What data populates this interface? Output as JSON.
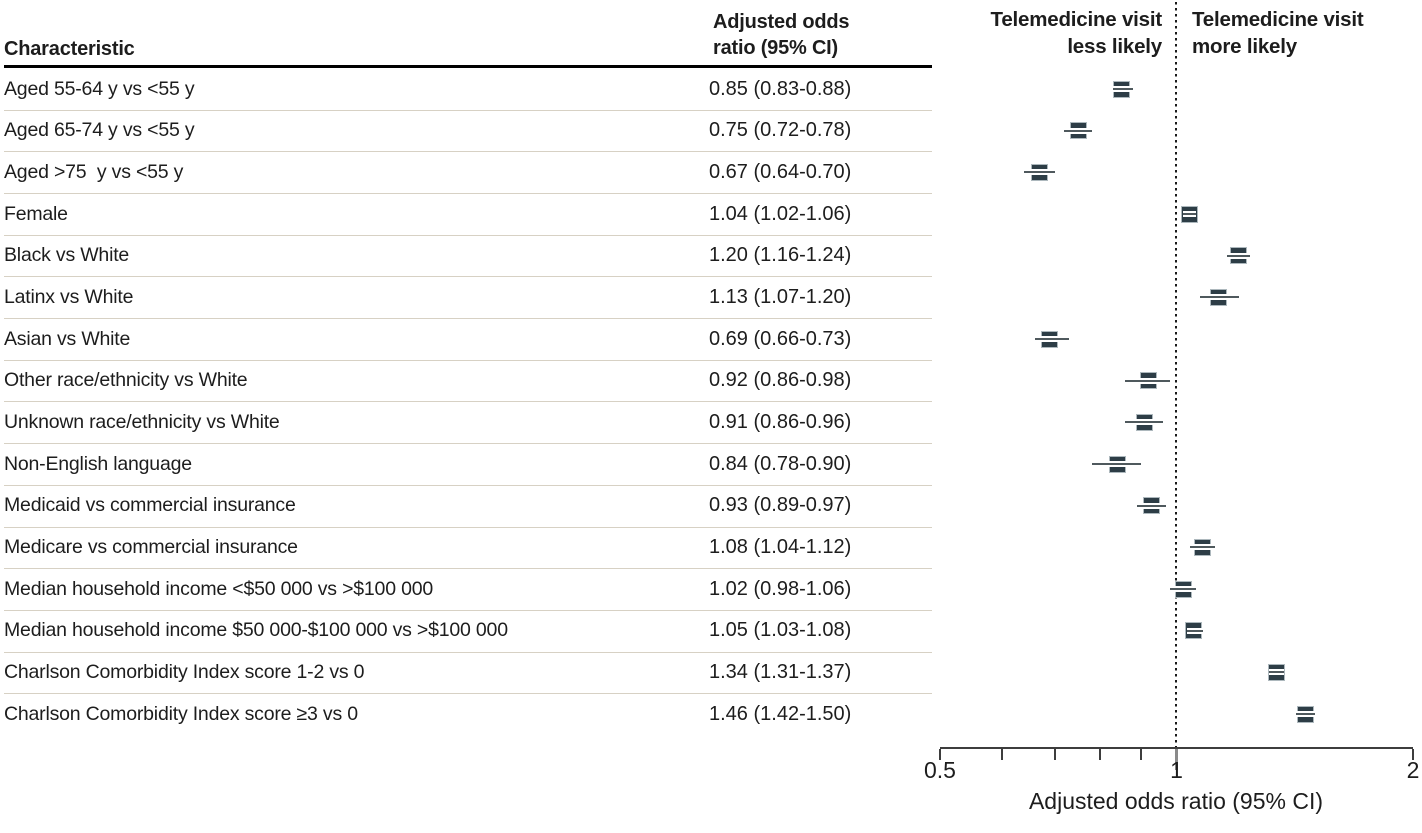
{
  "table": {
    "characteristic_header": "Characteristic",
    "or_header": "Adjusted odds\nratio (95% CI)"
  },
  "plot_headers": {
    "left": "Telemedicine visit\nless likely",
    "right": "Telemedicine visit\nmore likely"
  },
  "axis": {
    "title": "Adjusted odds ratio (95% CI)"
  },
  "colors": {
    "marker_fill": "#2d3d46",
    "marker_border": "#adb8bd",
    "whisker": "#4f595d",
    "separator": "#d7d1c4",
    "axis": "#3d3d3d",
    "text": "#1d1d1d",
    "reference_line": "#1a1a1a"
  },
  "chart_data": {
    "type": "scatter",
    "variant": "forest-plot",
    "xlabel": "Adjusted odds ratio (95% CI)",
    "xscale": "log",
    "xlim": [
      0.5,
      2
    ],
    "reference_line": 1,
    "ticks": [
      {
        "v": 0.5,
        "label": "0.5"
      },
      {
        "v": 0.6,
        "label": ""
      },
      {
        "v": 0.7,
        "label": ""
      },
      {
        "v": 0.8,
        "label": ""
      },
      {
        "v": 0.9,
        "label": ""
      },
      {
        "v": 1.0,
        "label": "1"
      },
      {
        "v": 2.0,
        "label": "2"
      }
    ],
    "region_labels": {
      "less": "Telemedicine visit\nless likely",
      "more": "Telemedicine visit\nmore likely"
    },
    "rows": [
      {
        "label": "Aged 55-64 y vs <55 y",
        "or_text": "0.85 (0.83-0.88)",
        "or": 0.85,
        "lo": 0.83,
        "hi": 0.88
      },
      {
        "label": "Aged 65-74 y vs <55 y",
        "or_text": "0.75 (0.72-0.78)",
        "or": 0.75,
        "lo": 0.72,
        "hi": 0.78
      },
      {
        "label": "Aged >75  y vs <55 y",
        "or_text": "0.67 (0.64-0.70)",
        "or": 0.67,
        "lo": 0.64,
        "hi": 0.7
      },
      {
        "label": "Female",
        "or_text": "1.04 (1.02-1.06)",
        "or": 1.04,
        "lo": 1.02,
        "hi": 1.06
      },
      {
        "label": "Black vs White",
        "or_text": "1.20 (1.16-1.24)",
        "or": 1.2,
        "lo": 1.16,
        "hi": 1.24
      },
      {
        "label": "Latinx vs White",
        "or_text": "1.13 (1.07-1.20)",
        "or": 1.13,
        "lo": 1.07,
        "hi": 1.2
      },
      {
        "label": "Asian vs White",
        "or_text": "0.69 (0.66-0.73)",
        "or": 0.69,
        "lo": 0.66,
        "hi": 0.73
      },
      {
        "label": "Other race/ethnicity vs White",
        "or_text": "0.92 (0.86-0.98)",
        "or": 0.92,
        "lo": 0.86,
        "hi": 0.98
      },
      {
        "label": "Unknown race/ethnicity vs White",
        "or_text": "0.91 (0.86-0.96)",
        "or": 0.91,
        "lo": 0.86,
        "hi": 0.96
      },
      {
        "label": "Non-English language",
        "or_text": "0.84 (0.78-0.90)",
        "or": 0.84,
        "lo": 0.78,
        "hi": 0.9
      },
      {
        "label": "Medicaid vs commercial insurance",
        "or_text": "0.93 (0.89-0.97)",
        "or": 0.93,
        "lo": 0.89,
        "hi": 0.97
      },
      {
        "label": "Medicare vs commercial insurance",
        "or_text": "1.08 (1.04-1.12)",
        "or": 1.08,
        "lo": 1.04,
        "hi": 1.12
      },
      {
        "label": "Median household income <$50 000 vs >$100 000",
        "or_text": "1.02 (0.98-1.06)",
        "or": 1.02,
        "lo": 0.98,
        "hi": 1.06
      },
      {
        "label": "Median household income $50 000-$100 000 vs >$100 000",
        "or_text": "1.05 (1.03-1.08)",
        "or": 1.05,
        "lo": 1.03,
        "hi": 1.08
      },
      {
        "label": "Charlson Comorbidity Index score 1-2 vs 0",
        "or_text": "1.34 (1.31-1.37)",
        "or": 1.34,
        "lo": 1.31,
        "hi": 1.37
      },
      {
        "label": "Charlson Comorbidity Index score ≥3 vs 0",
        "or_text": "1.46 (1.42-1.50)",
        "or": 1.46,
        "lo": 1.42,
        "hi": 1.5
      }
    ]
  }
}
